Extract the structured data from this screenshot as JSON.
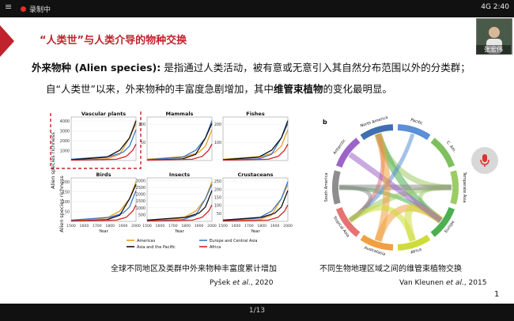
{
  "recording": {
    "label": "录制中"
  },
  "status_bar": {
    "text": "4G 2:40"
  },
  "slide": {
    "title": "“人类世”与人类介导的物种交换",
    "line1_term": "外来物种 (Alien species):",
    "line1_rest": " 是指通过人类活动，被有意或无意引入其自然分布范围以外的分类群；",
    "line2_a": "自“人类世”以来，外来物种的丰富度急剧增加，其中",
    "line2_b": "维管束植物",
    "line2_c": "的变化最明显。",
    "caption_left": "全球不同地区及类群中外来物种丰富度累计增加",
    "cite_left_a": "Pyšek ",
    "cite_left_b": "et al.",
    "cite_left_c": ", 2020",
    "caption_right": "不同生物地理区域之间的维管束植物交换",
    "cite_right_a": "Van Kleunen ",
    "cite_right_b": "et al.",
    "cite_right_c": ", 2015",
    "page_number": "1"
  },
  "participant": {
    "name": "张宏伟"
  },
  "pager": {
    "text": "1/13"
  },
  "figure_left": {
    "y_axis_label": "Alien species richness",
    "x_axis_label": "Year",
    "panels": [
      {
        "title": "Vascular plants",
        "yticks": [
          "1000",
          "2000",
          "3000",
          "4000"
        ],
        "highlighted": true
      },
      {
        "title": "Mammals",
        "yticks": [
          "50",
          "100"
        ]
      },
      {
        "title": "Fishes",
        "yticks": [
          "100",
          "200"
        ]
      },
      {
        "title": "Birds",
        "yticks": [
          "50",
          "100",
          "150",
          "200"
        ]
      },
      {
        "title": "Insects",
        "yticks": [
          "500",
          "1000",
          "1500",
          "2000",
          "2500",
          "3000"
        ]
      },
      {
        "title": "Crustaceans",
        "yticks": [
          "50",
          "100",
          "150",
          "200",
          "250"
        ]
      }
    ],
    "xticks": [
      "1500",
      "1600",
      "1700",
      "1800",
      "1900",
      "2000"
    ],
    "legend": [
      {
        "label": "Americas",
        "color": "#e8a020"
      },
      {
        "label": "Europe and Central Asia",
        "color": "#3a78c8"
      },
      {
        "label": "Asia and the Pacific",
        "color": "#111111"
      },
      {
        "label": "Africa",
        "color": "#d42020"
      }
    ]
  },
  "figure_right": {
    "panel_label": "b",
    "regions": [
      "Pacific",
      "C. Am.",
      "Temperate Asia",
      "Europe",
      "Africa",
      "Australasia",
      "Tropical Asia",
      "South America",
      "Antarctic",
      "North America"
    ]
  }
}
